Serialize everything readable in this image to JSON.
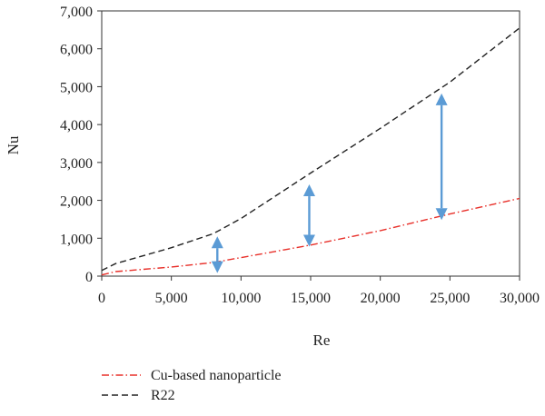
{
  "chart_data": {
    "type": "line",
    "xlabel": "Re",
    "ylabel": "Nu",
    "xlim": [
      0,
      30000
    ],
    "ylim": [
      0,
      7000
    ],
    "x_ticks": [
      0,
      5000,
      10000,
      15000,
      20000,
      25000,
      30000
    ],
    "x_tick_labels": [
      "0",
      "5,000",
      "10,000",
      "15,000",
      "20,000",
      "25,000",
      "30,000"
    ],
    "y_ticks": [
      0,
      1000,
      2000,
      3000,
      4000,
      5000,
      6000,
      7000
    ],
    "y_tick_labels": [
      "0",
      "1,000",
      "2,000",
      "3,000",
      "4,000",
      "5,000",
      "6,000",
      "7,000"
    ],
    "grid": false,
    "legend_position": "bottom-left",
    "series": [
      {
        "name": "Cu-based nanoparticle",
        "color": "#e8302a",
        "dash": "dash-dot",
        "points": [
          [
            0,
            30
          ],
          [
            1000,
            120
          ],
          [
            5000,
            240
          ],
          [
            8000,
            360
          ],
          [
            10000,
            490
          ],
          [
            15000,
            820
          ],
          [
            20000,
            1200
          ],
          [
            25000,
            1640
          ],
          [
            30000,
            2050
          ]
        ]
      },
      {
        "name": "R22",
        "color": "#222222",
        "dash": "dashed",
        "points": [
          [
            0,
            150
          ],
          [
            1000,
            330
          ],
          [
            5000,
            750
          ],
          [
            8000,
            1120
          ],
          [
            10000,
            1520
          ],
          [
            15000,
            2720
          ],
          [
            20000,
            3900
          ],
          [
            25000,
            5120
          ],
          [
            30000,
            6550
          ]
        ]
      }
    ],
    "annotations": [
      {
        "type": "double-arrow",
        "x": 8300,
        "y_from": 80,
        "y_to": 1050,
        "color": "#5b9bd5"
      },
      {
        "type": "double-arrow",
        "x": 14900,
        "y_from": 780,
        "y_to": 2420,
        "color": "#5b9bd5"
      },
      {
        "type": "double-arrow",
        "x": 24400,
        "y_from": 1480,
        "y_to": 4820,
        "color": "#5b9bd5"
      }
    ]
  }
}
